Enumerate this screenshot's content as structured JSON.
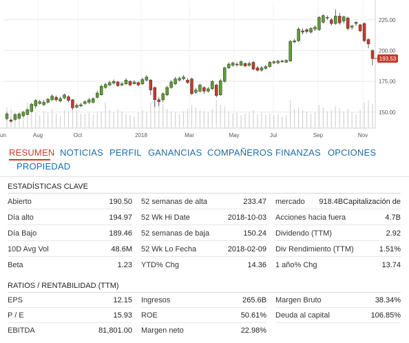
{
  "chart_data": {
    "type": "candlestick",
    "x_tick_labels": [
      "un",
      "Aug",
      "Oct",
      "2018",
      "Mar",
      "May",
      "Jul",
      "Sep",
      "Nov"
    ],
    "y_tick_labels": [
      "225.00",
      "200.00",
      "175.00",
      "150.00"
    ],
    "y_ticks": [
      225,
      200,
      175,
      150
    ],
    "ylim": [
      137,
      240
    ],
    "current_price_label": "193.53",
    "current_price": 193.53,
    "candles": [
      {
        "o": 144.7,
        "c": 148.5,
        "h": 150.0,
        "l": 143.5,
        "v": 32
      },
      {
        "o": 143.5,
        "c": 142.6,
        "h": 145.0,
        "l": 141.5,
        "v": 30
      },
      {
        "o": 144.0,
        "c": 148.0,
        "h": 149.0,
        "l": 143.0,
        "v": 24
      },
      {
        "o": 145.0,
        "c": 148.5,
        "h": 149.5,
        "l": 144.0,
        "v": 26
      },
      {
        "o": 147.0,
        "c": 150.0,
        "h": 151.0,
        "l": 146.0,
        "v": 22
      },
      {
        "o": 148.0,
        "c": 152.0,
        "h": 153.0,
        "l": 147.5,
        "v": 40
      },
      {
        "o": 150.5,
        "c": 156.5,
        "h": 157.5,
        "l": 150.0,
        "v": 30
      },
      {
        "o": 155.0,
        "c": 159.5,
        "h": 160.5,
        "l": 153.0,
        "v": 24
      },
      {
        "o": 157.0,
        "c": 158.5,
        "h": 160.0,
        "l": 156.0,
        "v": 20
      },
      {
        "o": 156.0,
        "c": 158.0,
        "h": 160.0,
        "l": 155.0,
        "v": 26
      },
      {
        "o": 158.0,
        "c": 160.5,
        "h": 161.5,
        "l": 157.0,
        "v": 24
      },
      {
        "o": 160.0,
        "c": 163.0,
        "h": 164.5,
        "l": 159.0,
        "v": 30
      },
      {
        "o": 162.0,
        "c": 160.0,
        "h": 163.5,
        "l": 158.5,
        "v": 22
      },
      {
        "o": 159.0,
        "c": 161.0,
        "h": 162.5,
        "l": 158.0,
        "v": 18
      },
      {
        "o": 161.5,
        "c": 164.0,
        "h": 165.0,
        "l": 160.5,
        "v": 28
      },
      {
        "o": 162.5,
        "c": 159.5,
        "h": 163.5,
        "l": 158.0,
        "v": 26
      },
      {
        "o": 160.0,
        "c": 153.5,
        "h": 160.5,
        "l": 152.0,
        "v": 36
      },
      {
        "o": 154.0,
        "c": 155.5,
        "h": 157.0,
        "l": 153.0,
        "v": 28
      },
      {
        "o": 155.0,
        "c": 156.0,
        "h": 157.5,
        "l": 154.0,
        "v": 22
      },
      {
        "o": 157.0,
        "c": 158.5,
        "h": 159.5,
        "l": 156.0,
        "v": 22
      },
      {
        "o": 158.0,
        "c": 160.0,
        "h": 161.5,
        "l": 156.5,
        "v": 24
      },
      {
        "o": 158.0,
        "c": 161.0,
        "h": 162.0,
        "l": 157.0,
        "v": 20
      },
      {
        "o": 162.0,
        "c": 165.5,
        "h": 167.0,
        "l": 161.0,
        "v": 24
      },
      {
        "o": 164.0,
        "c": 171.0,
        "h": 172.5,
        "l": 163.5,
        "v": 26
      },
      {
        "o": 170.0,
        "c": 172.5,
        "h": 174.0,
        "l": 169.0,
        "v": 40
      },
      {
        "o": 172.0,
        "c": 174.0,
        "h": 175.5,
        "l": 171.0,
        "v": 28
      },
      {
        "o": 173.5,
        "c": 175.0,
        "h": 176.5,
        "l": 172.5,
        "v": 24
      },
      {
        "o": 174.5,
        "c": 171.5,
        "h": 175.5,
        "l": 170.5,
        "v": 30
      },
      {
        "o": 172.0,
        "c": 173.0,
        "h": 174.5,
        "l": 171.0,
        "v": 26
      },
      {
        "o": 173.0,
        "c": 176.0,
        "h": 177.5,
        "l": 172.0,
        "v": 22
      },
      {
        "o": 175.0,
        "c": 172.0,
        "h": 176.0,
        "l": 171.0,
        "v": 20
      },
      {
        "o": 173.0,
        "c": 174.5,
        "h": 176.0,
        "l": 172.5,
        "v": 18
      },
      {
        "o": 174.0,
        "c": 172.0,
        "h": 175.0,
        "l": 171.0,
        "v": 24
      },
      {
        "o": 173.0,
        "c": 176.5,
        "h": 178.0,
        "l": 172.0,
        "v": 28
      },
      {
        "o": 176.0,
        "c": 178.5,
        "h": 180.0,
        "l": 175.0,
        "v": 24
      },
      {
        "o": 176.0,
        "c": 168.0,
        "h": 177.0,
        "l": 164.0,
        "v": 40
      },
      {
        "o": 170.0,
        "c": 160.0,
        "h": 171.0,
        "l": 154.0,
        "v": 42
      },
      {
        "o": 160.0,
        "c": 158.5,
        "h": 162.0,
        "l": 155.0,
        "v": 46
      },
      {
        "o": 160.0,
        "c": 165.0,
        "h": 166.0,
        "l": 158.0,
        "v": 38
      },
      {
        "o": 164.0,
        "c": 170.0,
        "h": 171.5,
        "l": 163.0,
        "v": 30
      },
      {
        "o": 170.0,
        "c": 174.5,
        "h": 176.0,
        "l": 169.0,
        "v": 26
      },
      {
        "o": 173.0,
        "c": 177.0,
        "h": 178.5,
        "l": 172.0,
        "v": 24
      },
      {
        "o": 176.0,
        "c": 177.5,
        "h": 179.0,
        "l": 175.0,
        "v": 22
      },
      {
        "o": 177.0,
        "c": 178.5,
        "h": 180.0,
        "l": 176.0,
        "v": 26
      },
      {
        "o": 176.0,
        "c": 174.0,
        "h": 177.5,
        "l": 173.0,
        "v": 30
      },
      {
        "o": 177.0,
        "c": 165.0,
        "h": 178.0,
        "l": 164.0,
        "v": 36
      },
      {
        "o": 166.0,
        "c": 168.0,
        "h": 169.5,
        "l": 165.0,
        "v": 32
      },
      {
        "o": 167.0,
        "c": 172.0,
        "h": 173.0,
        "l": 166.0,
        "v": 28
      },
      {
        "o": 170.0,
        "c": 167.0,
        "h": 171.0,
        "l": 165.0,
        "v": 26
      },
      {
        "o": 167.0,
        "c": 169.0,
        "h": 170.5,
        "l": 166.0,
        "v": 24
      },
      {
        "o": 169.0,
        "c": 175.0,
        "h": 176.0,
        "l": 168.0,
        "v": 30
      },
      {
        "o": 172.0,
        "c": 163.5,
        "h": 173.0,
        "l": 162.0,
        "v": 44
      },
      {
        "o": 164.0,
        "c": 175.5,
        "h": 177.0,
        "l": 163.0,
        "v": 36
      },
      {
        "o": 175.0,
        "c": 186.0,
        "h": 187.0,
        "l": 174.0,
        "v": 34
      },
      {
        "o": 186.0,
        "c": 189.0,
        "h": 190.5,
        "l": 185.0,
        "v": 26
      },
      {
        "o": 188.0,
        "c": 190.0,
        "h": 191.0,
        "l": 187.0,
        "v": 22
      },
      {
        "o": 189.0,
        "c": 188.5,
        "h": 190.5,
        "l": 187.0,
        "v": 24
      },
      {
        "o": 188.0,
        "c": 191.0,
        "h": 192.0,
        "l": 187.5,
        "v": 20
      },
      {
        "o": 189.5,
        "c": 187.5,
        "h": 190.5,
        "l": 186.5,
        "v": 22
      },
      {
        "o": 188.0,
        "c": 189.5,
        "h": 191.0,
        "l": 187.0,
        "v": 24
      },
      {
        "o": 190.5,
        "c": 185.0,
        "h": 191.5,
        "l": 184.0,
        "v": 28
      },
      {
        "o": 186.0,
        "c": 184.0,
        "h": 187.5,
        "l": 183.0,
        "v": 22
      },
      {
        "o": 184.0,
        "c": 186.0,
        "h": 187.5,
        "l": 183.0,
        "v": 24
      },
      {
        "o": 185.5,
        "c": 187.0,
        "h": 188.5,
        "l": 184.5,
        "v": 20
      },
      {
        "o": 187.0,
        "c": 190.5,
        "h": 191.5,
        "l": 186.0,
        "v": 22
      },
      {
        "o": 190.0,
        "c": 191.0,
        "h": 192.0,
        "l": 189.0,
        "v": 20
      },
      {
        "o": 190.0,
        "c": 191.5,
        "h": 192.5,
        "l": 189.0,
        "v": 22
      },
      {
        "o": 191.5,
        "c": 191.0,
        "h": 192.5,
        "l": 190.0,
        "v": 18
      },
      {
        "o": 190.5,
        "c": 192.0,
        "h": 193.0,
        "l": 190.0,
        "v": 20
      },
      {
        "o": 191.5,
        "c": 207.5,
        "h": 208.5,
        "l": 191.0,
        "v": 44
      },
      {
        "o": 207.0,
        "c": 208.0,
        "h": 209.5,
        "l": 206.0,
        "v": 30
      },
      {
        "o": 208.0,
        "c": 217.5,
        "h": 219.0,
        "l": 207.0,
        "v": 32
      },
      {
        "o": 216.0,
        "c": 215.0,
        "h": 218.0,
        "l": 213.0,
        "v": 28
      },
      {
        "o": 217.0,
        "c": 215.5,
        "h": 218.0,
        "l": 214.0,
        "v": 26
      },
      {
        "o": 215.0,
        "c": 218.0,
        "h": 219.0,
        "l": 214.0,
        "v": 22
      },
      {
        "o": 217.5,
        "c": 219.0,
        "h": 220.5,
        "l": 216.0,
        "v": 24
      },
      {
        "o": 217.0,
        "c": 227.0,
        "h": 228.0,
        "l": 216.0,
        "v": 36
      },
      {
        "o": 223.0,
        "c": 228.5,
        "h": 229.5,
        "l": 222.0,
        "v": 32
      },
      {
        "o": 227.0,
        "c": 226.5,
        "h": 228.5,
        "l": 225.0,
        "v": 26
      },
      {
        "o": 225.0,
        "c": 222.0,
        "h": 226.5,
        "l": 220.5,
        "v": 28
      },
      {
        "o": 222.0,
        "c": 228.0,
        "h": 233.5,
        "l": 221.0,
        "v": 34
      },
      {
        "o": 228.0,
        "c": 222.5,
        "h": 230.5,
        "l": 221.0,
        "v": 30
      },
      {
        "o": 224.0,
        "c": 227.5,
        "h": 228.5,
        "l": 222.0,
        "v": 26
      },
      {
        "o": 226.5,
        "c": 218.0,
        "h": 227.5,
        "l": 216.5,
        "v": 30
      },
      {
        "o": 219.0,
        "c": 220.0,
        "h": 221.0,
        "l": 217.0,
        "v": 24
      },
      {
        "o": 222.0,
        "c": 223.0,
        "h": 224.0,
        "l": 220.0,
        "v": 22
      },
      {
        "o": 221.0,
        "c": 216.0,
        "h": 221.5,
        "l": 215.0,
        "v": 28
      },
      {
        "o": 222.0,
        "c": 208.0,
        "h": 223.0,
        "l": 207.0,
        "v": 40
      },
      {
        "o": 209.0,
        "c": 205.5,
        "h": 210.0,
        "l": 202.0,
        "v": 44
      },
      {
        "o": 200.0,
        "c": 193.5,
        "h": 201.0,
        "l": 188.0,
        "v": 38
      }
    ]
  },
  "tabs": [
    {
      "label": "RESUMEN"
    },
    {
      "label": "NOTICIAS"
    },
    {
      "label": "PERFIL"
    },
    {
      "label": "GANANCIAS"
    },
    {
      "label": "COMPAÑEROS"
    },
    {
      "label": "FINANZAS"
    },
    {
      "label": "OPCIONES"
    },
    {
      "label": "PROPIEDAD"
    }
  ],
  "key_stats": {
    "title": "ESTADÍSTICAS CLAVE",
    "rows": [
      [
        {
          "label": "Abierto",
          "value": "190.50"
        },
        {
          "label": "52 semanas de alta",
          "value": "233.47"
        },
        {
          "label": "mercado",
          "value": "918.4BCapitalización de"
        }
      ],
      [
        {
          "label": "Día alto",
          "value": "194.97"
        },
        {
          "label": "52 Wk Hi Date",
          "value": "2018-10-03"
        },
        {
          "label": "Acciones hacia fuera",
          "value": "4.7B"
        }
      ],
      [
        {
          "label": "Día Bajo",
          "value": "189.46"
        },
        {
          "label": "52 semanas de baja",
          "value": "150.24"
        },
        {
          "label": "Dividendo (TTM)",
          "value": "2.92"
        }
      ],
      [
        {
          "label": "10D Avg Vol",
          "value": "48.6M"
        },
        {
          "label": "52 Wk Lo Fecha",
          "value": "2018-02-09"
        },
        {
          "label": "Div Rendimiento (TTM)",
          "value": "1.51%"
        }
      ],
      [
        {
          "label": "Beta",
          "value": "1.23"
        },
        {
          "label": "YTD% Chg",
          "value": "14.36"
        },
        {
          "label": "1 año% Chg",
          "value": "13.74"
        }
      ]
    ]
  },
  "ratios": {
    "title": "RATIOS / RENTABILIDAD (TTM)",
    "rows": [
      [
        {
          "label": "EPS",
          "value": "12.15"
        },
        {
          "label": "Ingresos",
          "value": "265.6B"
        },
        {
          "label": "Margen Bruto",
          "value": "38.34%"
        }
      ],
      [
        {
          "label": "P / E",
          "value": "15.93"
        },
        {
          "label": "ROE",
          "value": "50.61%"
        },
        {
          "label": "Deuda al capital",
          "value": "106.85%"
        }
      ],
      [
        {
          "label": "EBITDA",
          "value": "81,801.00"
        },
        {
          "label": "Margen neto",
          "value": "22.98%"
        },
        {
          "label": "",
          "value": ""
        }
      ]
    ]
  },
  "colors": {
    "up": "#5aa02c",
    "down": "#c43a2b",
    "accent": "#d0382b",
    "tab": "#1a6ca8",
    "grid": "#e8e8e8",
    "volume": "#d2d2d2"
  }
}
